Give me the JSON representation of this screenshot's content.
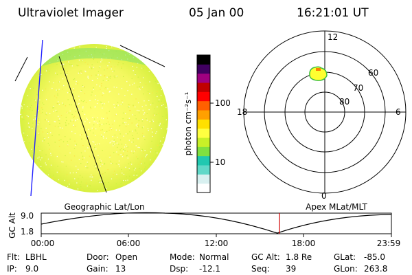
{
  "header": {
    "title": "Ultraviolet Imager",
    "date": "05 Jan 00",
    "time": "16:21:01 UT"
  },
  "colorbar": {
    "label": "photon cm⁻²s⁻¹",
    "ticks": [
      "100",
      "10"
    ],
    "colors": [
      "#ffffff",
      "#d8f0f0",
      "#60d8c8",
      "#20c8b0",
      "#80e040",
      "#c8f028",
      "#ffff40",
      "#ffe000",
      "#ffa000",
      "#ff6000",
      "#ff0000",
      "#c00000",
      "#a00080",
      "#400060",
      "#000000"
    ]
  },
  "polar": {
    "mlt_labels": {
      "top": "12",
      "left": "18",
      "right": "6",
      "bottom": "0"
    },
    "lat_labels": [
      "60",
      "70",
      "80"
    ]
  },
  "timeline": {
    "left_title": "Geographic Lat/Lon",
    "right_title": "Apex MLat/MLT",
    "ylabel": "GC Alt",
    "yticks": [
      "9.0",
      "1.8"
    ],
    "xticks": [
      "00:00",
      "06:00",
      "12:00",
      "18:00",
      "23:59"
    ]
  },
  "info": {
    "row1": [
      {
        "label": "Flt:",
        "value": "LBHL"
      },
      {
        "label": "Door:",
        "value": "Open"
      },
      {
        "label": "Mode:",
        "value": "Normal"
      },
      {
        "label": "GC Alt:",
        "value": "1.8 Re"
      },
      {
        "label": "GLat:",
        "value": "-85.0"
      }
    ],
    "row2": [
      {
        "label": "IP:",
        "value": "9.0"
      },
      {
        "label": "Gain:",
        "value": "13"
      },
      {
        "label": "Dsp:",
        "value": "-12.1"
      },
      {
        "label": "Seq:",
        "value": "39"
      },
      {
        "label": "GLon:",
        "value": "263.8"
      }
    ]
  }
}
